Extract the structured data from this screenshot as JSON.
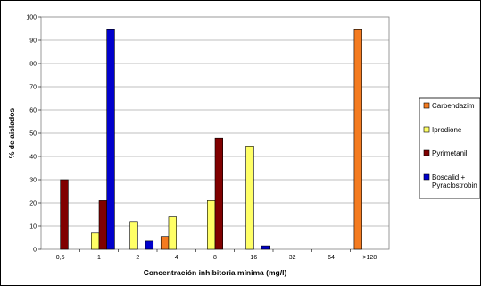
{
  "chart_data": {
    "type": "bar",
    "title": "",
    "xlabel": "Concentración inhibitoria mínima (mg/l)",
    "ylabel": "% de aislados",
    "categories": [
      "0,5",
      "1",
      "2",
      "4",
      "8",
      "16",
      "32",
      "64",
      ">128"
    ],
    "ylim": [
      0,
      100
    ],
    "yticks": [
      0,
      10,
      20,
      30,
      40,
      50,
      60,
      70,
      80,
      90,
      100
    ],
    "grid": true,
    "legend_position": "right",
    "series": [
      {
        "name": "Carbendazim",
        "color": "#f47b20",
        "values": [
          0,
          0,
          0,
          5.5,
          0,
          0,
          0,
          0,
          94.5
        ]
      },
      {
        "name": "Iprodione",
        "color": "#ffff66",
        "values": [
          0,
          7,
          12,
          14,
          21,
          44.5,
          0,
          0,
          0
        ]
      },
      {
        "name": "Pyrimetanil",
        "color": "#800000",
        "values": [
          30,
          21,
          0,
          0,
          48,
          0,
          0,
          0,
          0
        ]
      },
      {
        "name": "Boscalid + Pyraclostrobin",
        "name_lines": [
          "Boscalid +",
          "Pyraclostrobin"
        ],
        "color": "#0000cc",
        "values": [
          0,
          94.5,
          3.5,
          0,
          0,
          1.5,
          0,
          0,
          0
        ]
      }
    ]
  }
}
